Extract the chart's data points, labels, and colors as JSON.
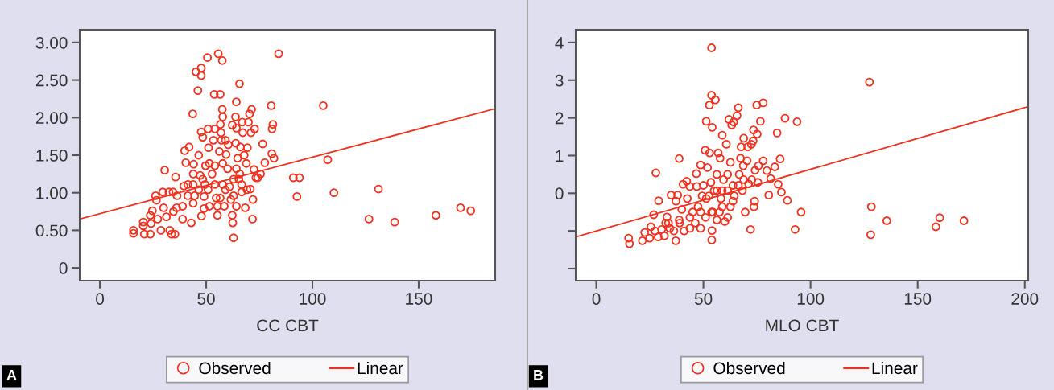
{
  "chart_data": [
    {
      "type": "scatter",
      "xlabel": "CC CBT",
      "xlim": [
        -9.5,
        186
      ],
      "ylim": [
        -0.17,
        3.17
      ],
      "xticks": [
        0,
        50,
        100,
        150
      ],
      "yticks": [
        0,
        {
          "value": 0.5,
          "label": "0.50"
        },
        {
          "value": 1,
          "label": "1.00"
        },
        {
          "value": 1.5,
          "label": "1.50"
        },
        {
          "value": 2,
          "label": "2.00"
        },
        {
          "value": 2.5,
          "label": "2.50"
        },
        {
          "value": 3,
          "label": "3.00"
        }
      ],
      "legend": "bottom",
      "annotations": [
        "A"
      ],
      "series": [
        {
          "name": "Observed",
          "marker": "circle",
          "color": "#f0301e",
          "x": [
            15.8,
            15.8,
            20.4,
            20.4,
            20.9,
            23.7,
            23.7,
            24.1,
            24.7,
            26.2,
            26.6,
            27.2,
            28.7,
            29.6,
            30.0,
            30.5,
            31.3,
            32.5,
            32.9,
            33.7,
            34.4,
            35.3,
            35.6,
            34.6,
            36.1,
            38.9,
            39.5,
            39.9,
            40.4,
            41.4,
            42.0,
            43.0,
            43.7,
            43.9,
            44.1,
            45.2,
            46.1,
            46.5,
            47.2,
            47.7,
            47.7,
            47.7,
            47.8,
            48.4,
            49.0,
            49.4,
            49.7,
            50.6,
            50.9,
            51.1,
            51.5,
            52.8,
            53.4,
            53.8,
            54.1,
            54.7,
            55.3,
            55.7,
            56.2,
            56.6,
            56.7,
            57.0,
            57.2,
            57.6,
            57.6,
            57.8,
            57.8,
            58.5,
            59.1,
            59.4,
            60.1,
            60.4,
            61.0,
            61.6,
            62.3,
            62.3,
            62.5,
            62.9,
            62.9,
            63.8,
            63.9,
            64.2,
            64.2,
            64.8,
            65.4,
            65.8,
            65.7,
            66.1,
            66.7,
            67.0,
            67.2,
            67.9,
            68.4,
            68.9,
            69.4,
            69.9,
            70.4,
            70.8,
            71.1,
            71.4,
            71.8,
            72.0,
            72.5,
            72.8,
            73.4,
            74.3,
            75.6,
            76.6,
            77.6,
            80.6,
            80.9,
            81.0,
            81.4,
            81.9,
            84.1,
            46.5,
            43.9,
            41.4,
            44.6,
            48.4,
            50.9,
            54.1,
            56.6,
            59.1,
            62.9,
            66.7,
            43.9,
            54.1,
            57.8,
            51.5,
            64.2,
            69.2,
            49.0,
            55.3,
            64.2,
            38.9,
            36.3,
            91.0,
            93.9,
            92.7,
            105.1,
            107.2,
            110.1,
            131.1,
            126.6,
            138.7,
            158.1,
            169.7,
            174.5
          ],
          "values": [
            0.5,
            0.46,
            0.61,
            0.56,
            0.45,
            0.45,
            0.7,
            0.59,
            0.76,
            0.96,
            0.9,
            0.65,
            0.5,
            1.01,
            0.8,
            1.3,
            0.68,
            1.01,
            0.5,
            0.45,
            1.01,
            0.45,
            1.21,
            0.75,
            0.8,
            0.65,
            1.09,
            1.56,
            1.4,
            0.96,
            1.61,
            0.6,
            2.05,
            0.86,
            1.38,
            2.61,
            2.36,
            1.5,
            1.23,
            2.66,
            2.56,
            1.81,
            0.69,
            1.74,
            0.95,
            1.11,
            1.36,
            2.8,
            1.85,
            1.6,
            0.82,
            1.25,
            1.7,
            2.31,
            1.85,
            0.93,
            0.7,
            2.85,
            1.55,
            2.31,
            1.91,
            1.8,
            1.7,
            2.76,
            2.11,
            2.01,
            1.11,
            0.82,
            1.7,
            1.51,
            1.32,
            1.64,
            1.08,
            0.91,
            1.9,
            0.7,
            0.6,
            0.4,
            1.18,
            2.01,
            1.66,
            2.21,
            1.86,
            1.46,
            1.18,
            1.25,
            2.45,
            1.61,
            1.01,
            1.94,
            1.8,
            1.5,
            0.8,
            1.39,
            1.6,
            1.94,
            2.05,
            1.05,
            1.8,
            2.11,
            0.65,
            0.91,
            1.31,
            1.85,
            1.2,
            1.2,
            1.25,
            1.65,
            1.4,
            2.16,
            1.52,
            1.85,
            1.91,
            1.46,
            2.85,
            1.04,
            1.11,
            1.11,
            0.96,
            1.18,
            1.04,
            1.11,
            0.93,
            1.04,
            0.96,
            1.11,
            1.25,
            1.36,
            1.39,
            1.39,
            1.32,
            1.04,
            0.79,
            0.82,
            0.82,
            0.82,
            0.96,
            1.2,
            1.2,
            0.95,
            2.16,
            1.44,
            1.0,
            1.05,
            0.65,
            0.61,
            0.7,
            0.8,
            0.76
          ]
        },
        {
          "name": "Linear",
          "type": "line",
          "color": "#f0301e",
          "x": [
            -9.5,
            186
          ],
          "values": [
            0.65,
            2.12
          ]
        }
      ]
    },
    {
      "type": "scatter",
      "xlabel": "MLO CBT",
      "xlim": [
        -9.6,
        201.6
      ],
      "ylim": [
        -2.32,
        4.34
      ],
      "xticks": [
        0,
        50,
        100,
        150,
        200
      ],
      "yticks": [
        {
          "value": -2,
          "label": null
        },
        {
          "value": -1,
          "label": null
        },
        0,
        1,
        2,
        3,
        4
      ],
      "legend": "bottom",
      "annotations": [
        "B"
      ],
      "series": [
        {
          "name": "Observed",
          "marker": "circle",
          "color": "#f0301e",
          "x": [
            15.1,
            15.5,
            21.5,
            22.6,
            24.9,
            25.5,
            26.8,
            27.8,
            27.4,
            28.9,
            29.1,
            30.5,
            31.8,
            32.4,
            33.0,
            34.3,
            34.9,
            36.2,
            37.1,
            37.2,
            38.0,
            38.7,
            38.9,
            39.9,
            40.5,
            41.0,
            42.2,
            42.5,
            43.7,
            43.7,
            45.0,
            46.2,
            46.7,
            46.9,
            47.5,
            48.7,
            48.7,
            49.4,
            50.0,
            50.8,
            51.0,
            51.3,
            51.9,
            52.5,
            52.9,
            52.8,
            53.5,
            53.8,
            53.8,
            53.9,
            54.0,
            54.1,
            54.4,
            55.0,
            55.6,
            56.3,
            56.9,
            57.5,
            57.8,
            58.2,
            58.8,
            59.4,
            60.0,
            60.7,
            61.3,
            61.9,
            62.6,
            62.6,
            63.2,
            63.8,
            64.1,
            64.4,
            65.7,
            66.3,
            66.7,
            67.3,
            67.6,
            68.2,
            68.6,
            68.8,
            69.5,
            70.4,
            70.7,
            71.1,
            72.0,
            72.4,
            72.6,
            73.2,
            73.4,
            73.6,
            73.9,
            74.1,
            74.9,
            75.1,
            75.4,
            75.7,
            76.6,
            77.9,
            77.9,
            79.6,
            80.5,
            81.4,
            83.3,
            84.4,
            84.9,
            85.8,
            86.4,
            88.1,
            89.2,
            92.8,
            93.7,
            95.6,
            51.3,
            53.8,
            56.3,
            58.8,
            61.3,
            63.8,
            66.3,
            68.8,
            58.8,
            48.7,
            43.7,
            38.7,
            33.7,
            56.3,
            61.3,
            127.5,
            128.4,
            128.1,
            135.6,
            158.5,
            160.3,
            171.6
          ],
          "values": [
            -1.19,
            -1.34,
            -1.26,
            -1.04,
            -1.19,
            -0.89,
            -0.57,
            0.54,
            -1.0,
            -1.16,
            -0.2,
            -0.96,
            -1.13,
            -0.79,
            -0.63,
            -0.93,
            -0.05,
            -1.0,
            -1.26,
            -0.21,
            -0.05,
            0.92,
            -0.79,
            -0.43,
            0.24,
            -1.0,
            0.32,
            -0.14,
            -0.93,
            0.18,
            -0.5,
            -0.79,
            0.52,
            0.18,
            -0.36,
            0.75,
            -0.93,
            -0.07,
            0.21,
            1.14,
            -0.64,
            1.91,
            0.68,
            -0.07,
            1.07,
            2.34,
            0.29,
            2.6,
            3.86,
            -1.24,
            -0.99,
            1.75,
            -0.5,
            0.07,
            2.48,
            0.5,
            1.07,
            -0.5,
            0.93,
            -0.14,
            1.54,
            0.36,
            -0.75,
            1.3,
            0.07,
            1.96,
            0.82,
            -0.36,
            1.81,
            0.21,
            1.89,
            -0.07,
            2.06,
            2.27,
            0.5,
            0.93,
            1.23,
            0.07,
            0.73,
            1.46,
            -0.5,
            0.86,
            1.23,
            0.25,
            -0.96,
            1.3,
            0.36,
            1.39,
            1.68,
            -0.36,
            -0.21,
            0.61,
            2.34,
            1.57,
            0.29,
            0.73,
            1.91,
            2.4,
            0.86,
            0.6,
            -0.05,
            0.39,
            0.7,
            1.6,
            0.24,
            0.91,
            0.03,
            1.99,
            -0.19,
            -0.96,
            1.9,
            -0.5,
            -0.14,
            -0.5,
            0.07,
            -0.36,
            0.5,
            -0.21,
            0.21,
            0.36,
            0.07,
            -0.5,
            -0.64,
            -0.71,
            -0.79,
            -0.71,
            -0.64,
            2.95,
            -0.36,
            -1.1,
            -0.73,
            -0.89,
            -0.65,
            -0.73
          ]
        },
        {
          "name": "Linear",
          "type": "line",
          "color": "#f0301e",
          "x": [
            -9.6,
            201.6
          ],
          "values": [
            -1.16,
            2.3
          ]
        }
      ]
    }
  ]
}
